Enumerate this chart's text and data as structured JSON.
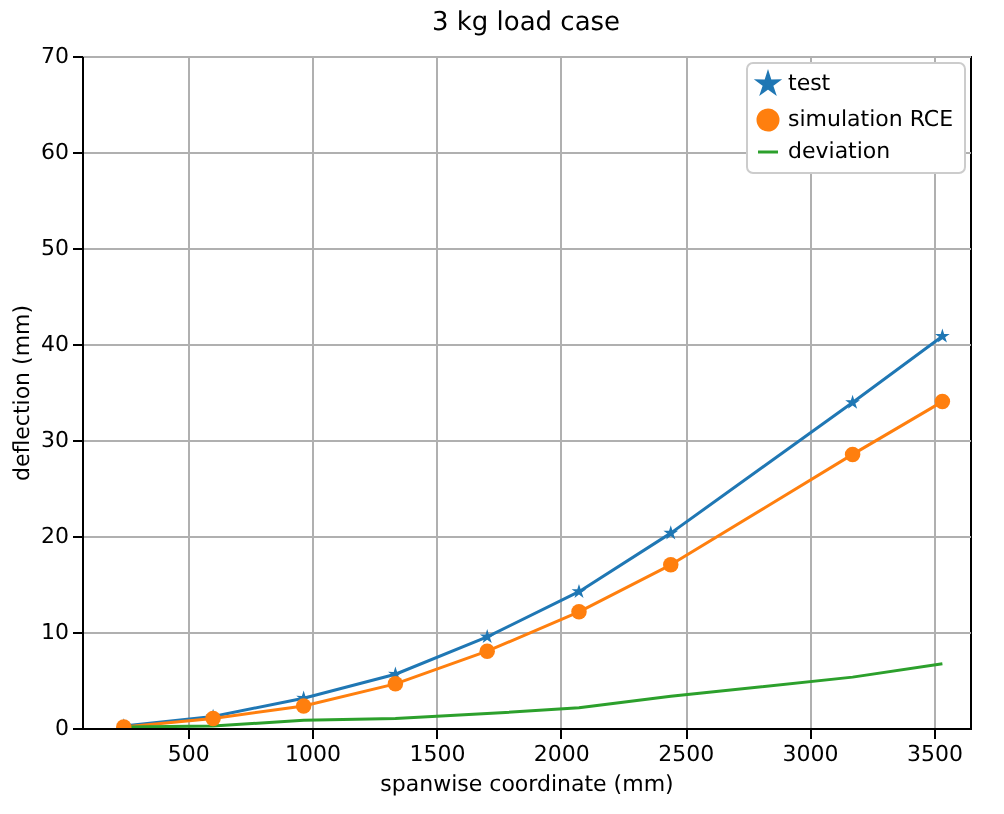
{
  "chart_data": {
    "type": "line",
    "title": "3 kg load case",
    "xlabel": "spanwise coordinate (mm)",
    "ylabel": "deflection (mm)",
    "xlim": [
      75,
      3645
    ],
    "ylim": [
      0,
      70
    ],
    "xticks": [
      500,
      1000,
      1500,
      2000,
      2500,
      3000,
      3500
    ],
    "yticks": [
      0,
      10,
      20,
      30,
      40,
      50,
      60,
      70
    ],
    "grid": true,
    "legend": "top right",
    "line_style": "solid",
    "series": [
      {
        "name": "test",
        "color": "#1f77b4",
        "marker": "star",
        "x": [
          243,
          602,
          966,
          1335,
          1704,
          2073,
          2442,
          3173,
          3534
        ],
        "values": [
          0.2,
          1.2,
          3.1,
          5.6,
          9.5,
          14.2,
          20.3,
          33.9,
          40.8
        ]
      },
      {
        "name": "simulation RCE",
        "color": "#ff7f0e",
        "marker": "circle",
        "x": [
          243,
          602,
          966,
          1335,
          1704,
          2073,
          2442,
          3173,
          3534
        ],
        "values": [
          0.1,
          1.0,
          2.3,
          4.6,
          8.0,
          12.1,
          17.0,
          28.5,
          34.0
        ]
      },
      {
        "name": "deviation",
        "color": "#2ca02c",
        "marker": "none",
        "x": [
          243,
          602,
          966,
          1335,
          1704,
          2073,
          2442,
          3173,
          3534
        ],
        "values": [
          0.1,
          0.2,
          0.8,
          1.0,
          1.5,
          2.1,
          3.3,
          5.3,
          6.7
        ]
      }
    ]
  }
}
